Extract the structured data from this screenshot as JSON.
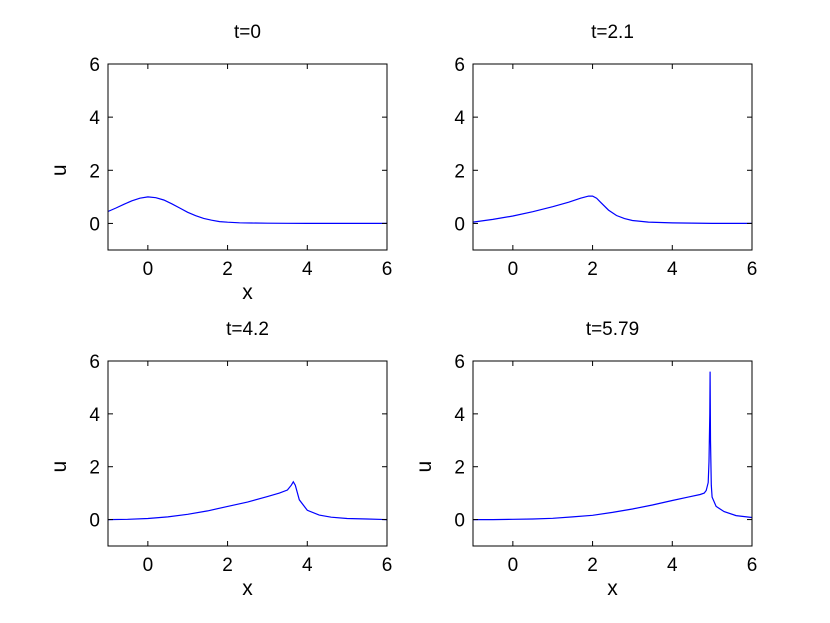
{
  "chart_data": [
    {
      "type": "line",
      "title": "t=0",
      "xlabel": "x",
      "ylabel": "u",
      "xlim": [
        -1,
        6
      ],
      "ylim": [
        -1,
        6
      ],
      "xticks": [
        0,
        2,
        4,
        6
      ],
      "yticks": [
        0,
        2,
        4,
        6
      ],
      "grid": false,
      "color": "#0000ff",
      "x": [
        -1,
        -0.8,
        -0.6,
        -0.4,
        -0.2,
        0,
        0.2,
        0.4,
        0.6,
        0.8,
        1.0,
        1.2,
        1.4,
        1.6,
        1.8,
        2.0,
        2.3,
        2.6,
        3.0,
        3.5,
        4.0,
        5.0,
        6.0
      ],
      "y": [
        0.45,
        0.58,
        0.72,
        0.85,
        0.95,
        1.0,
        0.97,
        0.88,
        0.74,
        0.58,
        0.42,
        0.29,
        0.19,
        0.12,
        0.07,
        0.045,
        0.025,
        0.015,
        0.008,
        0.004,
        0.002,
        0.0,
        0.0
      ]
    },
    {
      "type": "line",
      "title": "t=2.1",
      "xlabel": "",
      "ylabel": "",
      "xlim": [
        -1,
        6
      ],
      "ylim": [
        -1,
        6
      ],
      "xticks": [
        0,
        2,
        4,
        6
      ],
      "yticks": [
        0,
        2,
        4,
        6
      ],
      "grid": false,
      "color": "#0000ff",
      "x": [
        -1,
        -0.5,
        0,
        0.5,
        1.0,
        1.4,
        1.7,
        1.9,
        2.0,
        2.1,
        2.2,
        2.4,
        2.6,
        2.8,
        3.0,
        3.4,
        4.0,
        5.0,
        6.0
      ],
      "y": [
        0.05,
        0.15,
        0.28,
        0.44,
        0.63,
        0.8,
        0.95,
        1.03,
        1.03,
        0.95,
        0.8,
        0.5,
        0.3,
        0.18,
        0.11,
        0.05,
        0.02,
        0.0,
        0.0
      ]
    },
    {
      "type": "line",
      "title": "t=4.2",
      "xlabel": "x",
      "ylabel": "u",
      "xlim": [
        -1,
        6
      ],
      "ylim": [
        -1,
        6
      ],
      "xticks": [
        0,
        2,
        4,
        6
      ],
      "yticks": [
        0,
        2,
        4,
        6
      ],
      "grid": false,
      "color": "#0000ff",
      "x": [
        -1,
        -0.5,
        0,
        0.5,
        1.0,
        1.5,
        2.0,
        2.5,
        3.0,
        3.3,
        3.5,
        3.6,
        3.65,
        3.7,
        3.8,
        4.0,
        4.3,
        4.6,
        5.0,
        5.5,
        6.0
      ],
      "y": [
        0.0,
        0.01,
        0.04,
        0.1,
        0.2,
        0.33,
        0.5,
        0.66,
        0.87,
        1.0,
        1.12,
        1.3,
        1.43,
        1.3,
        0.75,
        0.35,
        0.17,
        0.09,
        0.04,
        0.02,
        0.0
      ]
    },
    {
      "type": "line",
      "title": "t=5.79",
      "xlabel": "x",
      "ylabel": "u",
      "xlim": [
        -1,
        6
      ],
      "ylim": [
        -1,
        6
      ],
      "xticks": [
        0,
        2,
        4,
        6
      ],
      "yticks": [
        0,
        2,
        4,
        6
      ],
      "grid": false,
      "color": "#0000ff",
      "x": [
        -1,
        -0.5,
        0,
        0.5,
        1.0,
        1.5,
        2.0,
        2.5,
        3.0,
        3.5,
        4.0,
        4.4,
        4.7,
        4.8,
        4.85,
        4.9,
        4.92,
        4.94,
        4.95,
        4.96,
        4.98,
        5.0,
        5.1,
        5.3,
        5.6,
        6.0
      ],
      "y": [
        0.0,
        0.0,
        0.01,
        0.02,
        0.05,
        0.1,
        0.16,
        0.27,
        0.4,
        0.55,
        0.72,
        0.85,
        0.95,
        1.0,
        1.1,
        1.4,
        2.2,
        4.0,
        5.6,
        3.0,
        1.3,
        0.85,
        0.5,
        0.3,
        0.15,
        0.08
      ]
    }
  ]
}
